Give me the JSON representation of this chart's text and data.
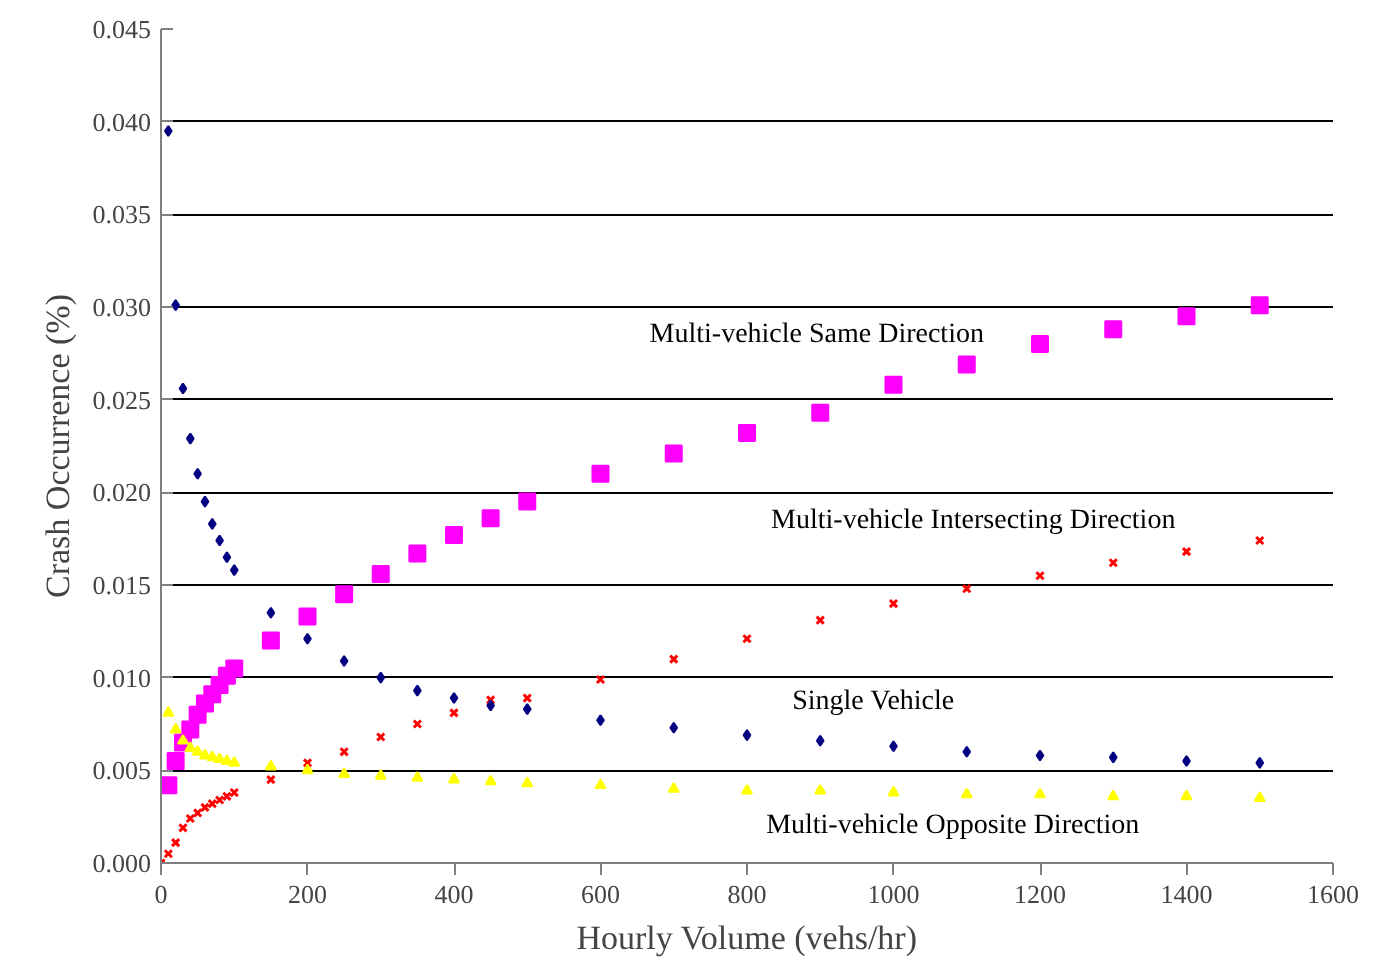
{
  "chart_data": {
    "type": "scatter",
    "xlabel": "Hourly Volume (vehs/hr)",
    "ylabel": "Crash Occurrence (%)",
    "x": [
      10,
      20,
      30,
      40,
      50,
      60,
      70,
      80,
      90,
      100,
      150,
      200,
      250,
      300,
      350,
      400,
      450,
      500,
      600,
      700,
      800,
      900,
      1000,
      1100,
      1200,
      1300,
      1400,
      1500
    ],
    "xlim": [
      0,
      1600
    ],
    "xticks": [
      0,
      200,
      400,
      600,
      800,
      1000,
      1200,
      1400,
      1600
    ],
    "ylim": [
      0,
      0.045
    ],
    "yticks": [
      {
        "value": 0,
        "label": "0.000"
      },
      {
        "value": 0.005,
        "label": "0.005"
      },
      {
        "value": 0.01,
        "label": "0.010"
      },
      {
        "value": 0.015,
        "label": "0.015"
      },
      {
        "value": 0.02,
        "label": "0.020"
      },
      {
        "value": 0.025,
        "label": "0.025"
      },
      {
        "value": 0.03,
        "label": "0.030"
      },
      {
        "value": 0.035,
        "label": "0.035"
      },
      {
        "value": 0.04,
        "label": "0.040"
      },
      {
        "value": 0.045,
        "label": "0.045"
      }
    ],
    "grid": "y",
    "series": [
      {
        "name": "Multi-vehicle Same  Direction",
        "color": "#ff00ff",
        "marker": "square",
        "values": [
          0.0042,
          0.0055,
          0.0065,
          0.0072,
          0.008,
          0.0086,
          0.0091,
          0.0096,
          0.0101,
          0.0105,
          0.012,
          0.0133,
          0.0145,
          0.0156,
          0.0167,
          0.0177,
          0.0186,
          0.0195,
          0.021,
          0.0221,
          0.0232,
          0.0243,
          0.0258,
          0.0269,
          0.028,
          0.0288,
          0.0295,
          0.0301
        ]
      },
      {
        "name": "Multi-vehicle Intersecting  Direction",
        "color": "#ff0000",
        "marker": "cross",
        "x": [
          0,
          10,
          20,
          30,
          40,
          50,
          60,
          70,
          80,
          90,
          100,
          150,
          200,
          250,
          300,
          350,
          400,
          450,
          500,
          600,
          700,
          800,
          900,
          1000,
          1100,
          1200,
          1300,
          1400,
          1500
        ],
        "values": [
          0,
          0.0005,
          0.0011,
          0.0019,
          0.0024,
          0.0027,
          0.003,
          0.0032,
          0.0034,
          0.0036,
          0.0038,
          0.0045,
          0.0054,
          0.006,
          0.0068,
          0.0075,
          0.0081,
          0.0088,
          0.0089,
          0.0099,
          0.011,
          0.0121,
          0.0131,
          0.014,
          0.0148,
          0.0155,
          0.0162,
          0.0168,
          0.0174
        ]
      },
      {
        "name": "Single Vehicle",
        "color": "#000080",
        "marker": "diamond",
        "values": [
          0.0395,
          0.0301,
          0.0256,
          0.0229,
          0.021,
          0.0195,
          0.0183,
          0.0174,
          0.0165,
          0.0158,
          0.0135,
          0.0121,
          0.0109,
          0.01,
          0.0093,
          0.0089,
          0.0085,
          0.0083,
          0.0077,
          0.0073,
          0.0069,
          0.0066,
          0.0063,
          0.006,
          0.0058,
          0.0057,
          0.0055,
          0.0054
        ]
      },
      {
        "name": "Multi-vehicle Opposite Direction",
        "color": "#ffff00",
        "marker": "triangle",
        "values": [
          0.0081,
          0.0072,
          0.0066,
          0.0062,
          0.006,
          0.0058,
          0.0057,
          0.0056,
          0.0055,
          0.0054,
          0.0052,
          0.005,
          0.0048,
          0.0047,
          0.0046,
          0.0045,
          0.0044,
          0.0043,
          0.0042,
          0.004,
          0.0039,
          0.0039,
          0.0038,
          0.0037,
          0.0037,
          0.0036,
          0.0036,
          0.0035
        ]
      }
    ]
  }
}
